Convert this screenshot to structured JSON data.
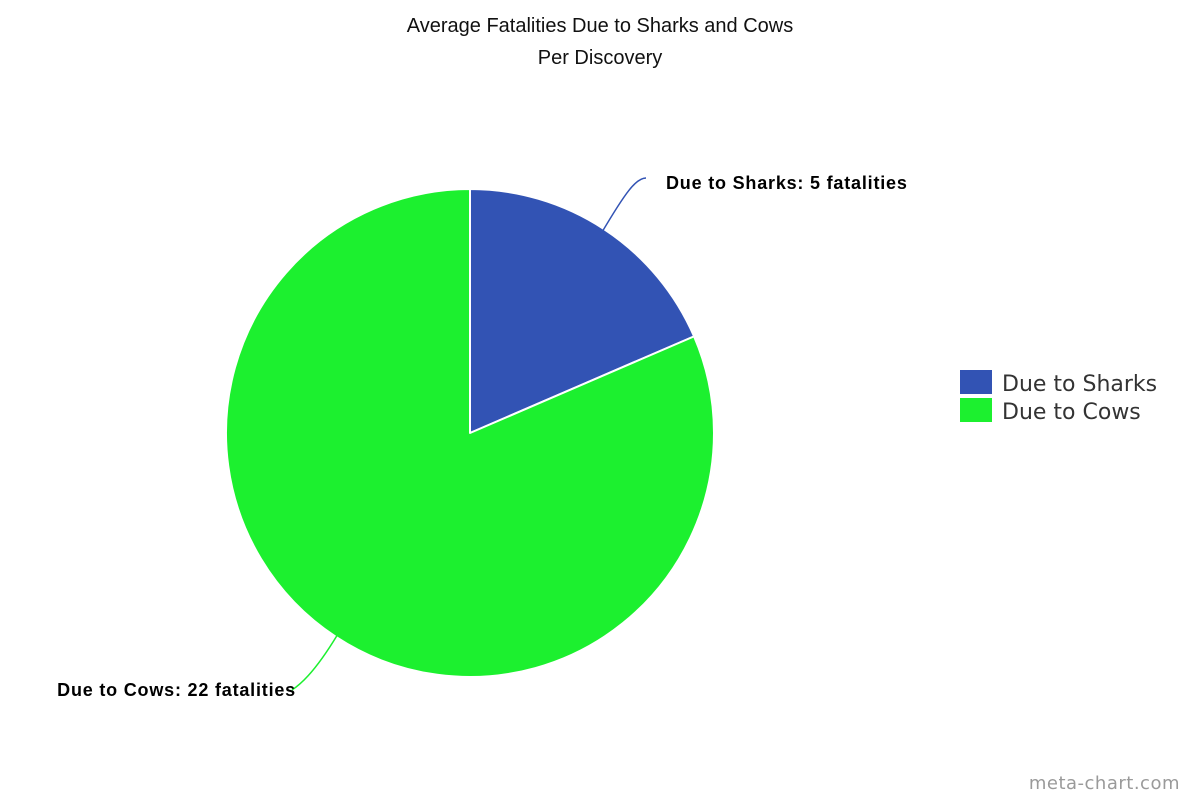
{
  "chart_data": {
    "type": "pie",
    "title": [
      "Average Fatalities Due to Sharks and Cows",
      "Per Discovery"
    ],
    "slices": [
      {
        "label": "Due to Sharks",
        "value": 5,
        "data_label": "Due to Sharks: 5 fatalities",
        "color": "#3253b4"
      },
      {
        "label": "Due to Cows",
        "value": 22,
        "data_label": "Due to Cows: 22 fatalities",
        "color": "#1cf02f"
      }
    ],
    "legend": {
      "position": "right"
    }
  },
  "watermark": "meta-chart.com"
}
